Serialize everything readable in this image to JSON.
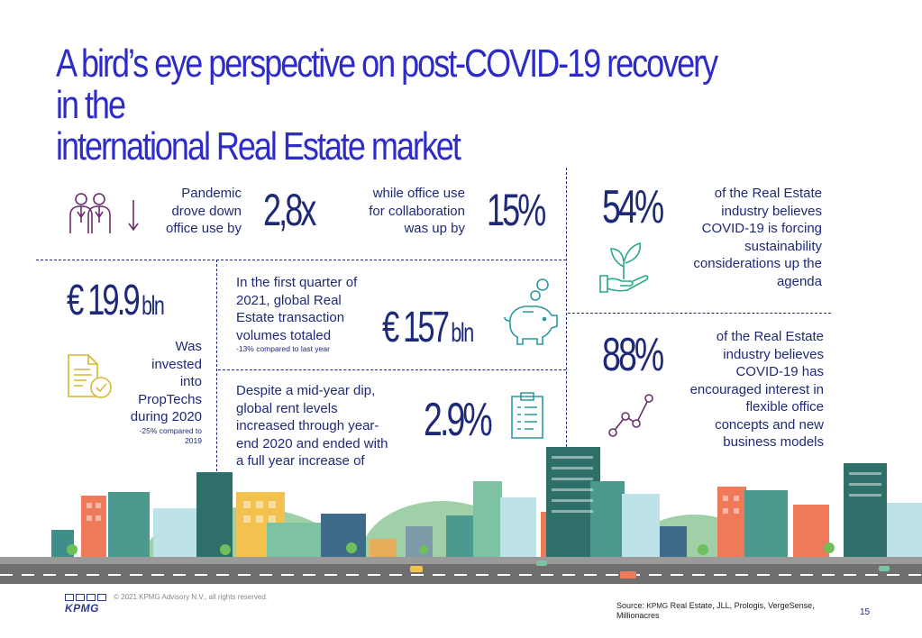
{
  "title": {
    "line1": "A bird’s eye perspective on post-COVID-19 recovery in the",
    "line2": "international Real Estate market"
  },
  "stats": {
    "office_use": {
      "text_line1": "Pandemic",
      "text_line2": "drove down",
      "text_line3": "office use by",
      "value": "2,8x"
    },
    "collaboration": {
      "text_line1": "while office use",
      "text_line2": "for collaboration",
      "text_line3": "was up by",
      "value": "15%"
    },
    "sustainability": {
      "value": "54%",
      "text_line1": "of the Real Estate",
      "text_line2": "industry believes",
      "text_line3": "COVID-19 is forcing",
      "text_line4": "sustainability",
      "text_line5": "considerations up the",
      "text_line6": "agenda"
    },
    "proptech": {
      "value": "€ 19.9",
      "unit": "bln",
      "text_line1": "Was",
      "text_line2": "invested",
      "text_line3": "into",
      "text_line4": "PropTechs",
      "text_line5": "during 2020",
      "note_line1": "-25% compared to",
      "note_line2": "2019"
    },
    "transactions": {
      "text_line1": "In the first quarter of",
      "text_line2": "2021, global Real",
      "text_line3": "Estate transaction",
      "text_line4": "volumes totaled",
      "note": "-13% compared to last year",
      "value": "€ 157",
      "unit": "bln"
    },
    "rent": {
      "text_line1": "Despite a mid-year dip,",
      "text_line2": "global rent levels",
      "text_line3": "increased through year-",
      "text_line4": "end 2020 and ended with",
      "text_line5": "a full year increase of",
      "value": "2.9%"
    },
    "flexible": {
      "value": "88%",
      "text_line1": "of the Real Estate",
      "text_line2": "industry believes",
      "text_line3": "COVID-19 has",
      "text_line4": "encouraged interest in",
      "text_line5": "flexible office",
      "text_line6": "concepts and new",
      "text_line7": "business models"
    }
  },
  "footer": {
    "logo": "KPMG",
    "copyright": "© 2021 KPMG Advisory N.V., all rights reserved.",
    "source_prefix": "Source: ",
    "source_brand": "KPMG",
    "source_line1": " Real Estate, JLL, Prologis, VergeSense,",
    "source_line2": "Millionacres",
    "page_number": "15"
  },
  "colors": {
    "title": "#2d2cc9",
    "text": "#1e2a78",
    "purple_icon": "#6b2d6b",
    "green_icon": "#2aa88a",
    "teal_icon": "#2a9aa0",
    "yellow_icon": "#d9b530",
    "road": "#6f6f6f"
  },
  "icons": [
    "people-icon",
    "down-arrow-icon",
    "plant-hand-icon",
    "document-check-icon",
    "piggy-bank-icon",
    "clipboard-icon",
    "line-chart-icon",
    "city-skyline"
  ]
}
